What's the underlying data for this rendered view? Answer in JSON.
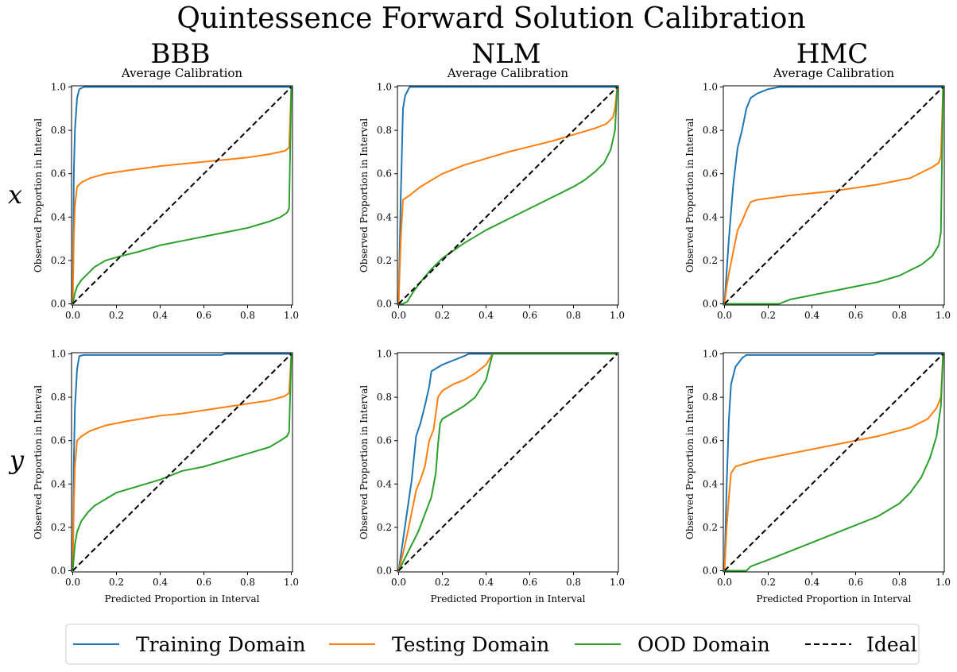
{
  "figure": {
    "title": "Quintessence Forward Solution Calibration",
    "columns": [
      "BBB",
      "NLM",
      "HMC"
    ],
    "rows": [
      "x",
      "y"
    ],
    "subtitle": "Average Calibration",
    "xlabel": "Predicted Proportion in Interval",
    "ylabel": "Observed Proportion in Interval",
    "ticks": [
      "0.0",
      "0.2",
      "0.4",
      "0.6",
      "0.8",
      "1.0"
    ]
  },
  "colors": {
    "Training Domain": "#1f77b4",
    "Testing Domain": "#ff7f0e",
    "OOD Domain": "#2ca02c",
    "Ideal": "#000000"
  },
  "legend": {
    "position": "bottom",
    "items": [
      {
        "label": "Training Domain",
        "style": "solid"
      },
      {
        "label": "Testing Domain",
        "style": "solid"
      },
      {
        "label": "OOD Domain",
        "style": "solid"
      },
      {
        "label": "Ideal",
        "style": "dashed"
      }
    ]
  },
  "chart_data": [
    {
      "type": "line",
      "method": "BBB",
      "output": "x",
      "xlim": [
        0,
        1
      ],
      "ylim": [
        0,
        1
      ],
      "grid": false,
      "series": [
        {
          "name": "Training Domain",
          "x": [
            0,
            0.005,
            0.01,
            0.02,
            0.03,
            0.05,
            1.0
          ],
          "y": [
            0,
            0.6,
            0.8,
            0.95,
            0.99,
            1.0,
            1.0
          ]
        },
        {
          "name": "Testing Domain",
          "x": [
            0,
            0.005,
            0.01,
            0.02,
            0.04,
            0.08,
            0.15,
            0.25,
            0.4,
            0.5,
            0.6,
            0.7,
            0.8,
            0.9,
            0.97,
            0.99,
            1.0
          ],
          "y": [
            0,
            0.3,
            0.45,
            0.54,
            0.56,
            0.58,
            0.6,
            0.615,
            0.635,
            0.645,
            0.655,
            0.665,
            0.675,
            0.69,
            0.705,
            0.72,
            1.0
          ]
        },
        {
          "name": "OOD Domain",
          "x": [
            0,
            0.01,
            0.02,
            0.04,
            0.07,
            0.1,
            0.15,
            0.22,
            0.3,
            0.4,
            0.5,
            0.6,
            0.7,
            0.8,
            0.9,
            0.95,
            0.98,
            0.99,
            1.0
          ],
          "y": [
            0,
            0.05,
            0.08,
            0.11,
            0.14,
            0.17,
            0.2,
            0.22,
            0.24,
            0.27,
            0.29,
            0.31,
            0.33,
            0.35,
            0.38,
            0.4,
            0.42,
            0.44,
            1.0
          ]
        },
        {
          "name": "Ideal",
          "x": [
            0,
            1
          ],
          "y": [
            0,
            1
          ]
        }
      ]
    },
    {
      "type": "line",
      "method": "NLM",
      "output": "x",
      "xlim": [
        0,
        1
      ],
      "ylim": [
        0,
        1
      ],
      "grid": false,
      "series": [
        {
          "name": "Training Domain",
          "x": [
            0,
            0.01,
            0.02,
            0.03,
            0.05,
            1.0
          ],
          "y": [
            0,
            0.5,
            0.9,
            0.96,
            1.0,
            1.0
          ]
        },
        {
          "name": "Testing Domain",
          "x": [
            0,
            0.01,
            0.02,
            0.05,
            0.1,
            0.2,
            0.3,
            0.4,
            0.5,
            0.6,
            0.7,
            0.8,
            0.9,
            0.95,
            0.98,
            0.99,
            1.0
          ],
          "y": [
            0,
            0.3,
            0.48,
            0.5,
            0.54,
            0.6,
            0.64,
            0.67,
            0.7,
            0.725,
            0.75,
            0.78,
            0.81,
            0.83,
            0.86,
            0.9,
            1.0
          ]
        },
        {
          "name": "OOD Domain",
          "x": [
            0,
            0.02,
            0.04,
            0.07,
            0.1,
            0.15,
            0.2,
            0.3,
            0.4,
            0.5,
            0.6,
            0.7,
            0.8,
            0.85,
            0.9,
            0.94,
            0.97,
            0.99,
            1.0
          ],
          "y": [
            0,
            0,
            0.01,
            0.06,
            0.1,
            0.16,
            0.21,
            0.28,
            0.34,
            0.39,
            0.44,
            0.49,
            0.54,
            0.57,
            0.61,
            0.65,
            0.71,
            0.8,
            1.0
          ]
        },
        {
          "name": "Ideal",
          "x": [
            0,
            1
          ],
          "y": [
            0,
            1
          ]
        }
      ]
    },
    {
      "type": "line",
      "method": "HMC",
      "output": "x",
      "xlim": [
        0,
        1
      ],
      "ylim": [
        0,
        1
      ],
      "grid": false,
      "series": [
        {
          "name": "Training Domain",
          "x": [
            0,
            0.01,
            0.02,
            0.04,
            0.06,
            0.08,
            0.1,
            0.12,
            0.15,
            0.2,
            0.25,
            0.3,
            1.0
          ],
          "y": [
            0,
            0.15,
            0.3,
            0.55,
            0.72,
            0.8,
            0.9,
            0.95,
            0.97,
            0.99,
            1.0,
            1.0,
            1.0
          ]
        },
        {
          "name": "Testing Domain",
          "x": [
            0,
            0.01,
            0.02,
            0.04,
            0.06,
            0.08,
            0.1,
            0.12,
            0.15,
            0.3,
            0.5,
            0.7,
            0.85,
            0.95,
            0.98,
            0.99,
            1.0
          ],
          "y": [
            0,
            0.08,
            0.14,
            0.24,
            0.34,
            0.38,
            0.43,
            0.47,
            0.48,
            0.5,
            0.52,
            0.55,
            0.58,
            0.63,
            0.65,
            0.68,
            1.0
          ]
        },
        {
          "name": "OOD Domain",
          "x": [
            0,
            0.25,
            0.3,
            0.4,
            0.5,
            0.6,
            0.7,
            0.8,
            0.9,
            0.95,
            0.98,
            0.99,
            1.0
          ],
          "y": [
            0,
            0,
            0.02,
            0.04,
            0.06,
            0.08,
            0.1,
            0.13,
            0.18,
            0.22,
            0.27,
            0.33,
            1.0
          ]
        },
        {
          "name": "Ideal",
          "x": [
            0,
            1
          ],
          "y": [
            0,
            1
          ]
        }
      ]
    },
    {
      "type": "line",
      "method": "BBB",
      "output": "y",
      "xlim": [
        0,
        1
      ],
      "ylim": [
        0,
        1
      ],
      "grid": false,
      "series": [
        {
          "name": "Training Domain",
          "x": [
            0,
            0.005,
            0.01,
            0.02,
            0.03,
            0.05,
            0.68,
            0.7,
            1.0
          ],
          "y": [
            0,
            0.5,
            0.75,
            0.93,
            0.99,
            0.995,
            0.995,
            1.0,
            1.0
          ]
        },
        {
          "name": "Testing Domain",
          "x": [
            0,
            0.005,
            0.01,
            0.02,
            0.04,
            0.08,
            0.15,
            0.25,
            0.4,
            0.5,
            0.6,
            0.7,
            0.8,
            0.9,
            0.97,
            0.99,
            1.0
          ],
          "y": [
            0,
            0.3,
            0.48,
            0.6,
            0.62,
            0.645,
            0.67,
            0.69,
            0.715,
            0.725,
            0.74,
            0.755,
            0.77,
            0.785,
            0.805,
            0.82,
            1.0
          ]
        },
        {
          "name": "OOD Domain",
          "x": [
            0,
            0.01,
            0.02,
            0.04,
            0.07,
            0.1,
            0.15,
            0.2,
            0.3,
            0.4,
            0.5,
            0.6,
            0.7,
            0.8,
            0.9,
            0.95,
            0.98,
            0.99,
            1.0
          ],
          "y": [
            0,
            0.12,
            0.18,
            0.23,
            0.27,
            0.3,
            0.33,
            0.36,
            0.39,
            0.42,
            0.46,
            0.48,
            0.51,
            0.54,
            0.57,
            0.6,
            0.62,
            0.64,
            1.0
          ]
        },
        {
          "name": "Ideal",
          "x": [
            0,
            1
          ],
          "y": [
            0,
            1
          ]
        }
      ]
    },
    {
      "type": "line",
      "method": "NLM",
      "output": "y",
      "xlim": [
        0,
        1
      ],
      "ylim": [
        0,
        1
      ],
      "grid": false,
      "series": [
        {
          "name": "Training Domain",
          "x": [
            0,
            0.02,
            0.04,
            0.06,
            0.08,
            0.1,
            0.12,
            0.14,
            0.15,
            0.2,
            0.25,
            0.3,
            0.32,
            1.0
          ],
          "y": [
            0,
            0.14,
            0.28,
            0.42,
            0.62,
            0.68,
            0.76,
            0.85,
            0.92,
            0.95,
            0.97,
            0.99,
            1.0,
            1.0
          ]
        },
        {
          "name": "Testing Domain",
          "x": [
            0,
            0.02,
            0.04,
            0.06,
            0.08,
            0.1,
            0.12,
            0.14,
            0.16,
            0.18,
            0.2,
            0.25,
            0.3,
            0.35,
            0.4,
            0.43,
            1.0
          ],
          "y": [
            0,
            0.08,
            0.17,
            0.27,
            0.37,
            0.42,
            0.48,
            0.6,
            0.65,
            0.8,
            0.83,
            0.86,
            0.88,
            0.91,
            0.95,
            1.0,
            1.0
          ]
        },
        {
          "name": "OOD Domain",
          "x": [
            0,
            0.03,
            0.06,
            0.09,
            0.12,
            0.15,
            0.17,
            0.18,
            0.19,
            0.2,
            0.25,
            0.3,
            0.35,
            0.4,
            0.43,
            1.0
          ],
          "y": [
            0,
            0.06,
            0.12,
            0.18,
            0.26,
            0.34,
            0.45,
            0.58,
            0.68,
            0.7,
            0.73,
            0.76,
            0.8,
            0.88,
            1.0,
            1.0
          ]
        },
        {
          "name": "Ideal",
          "x": [
            0,
            1
          ],
          "y": [
            0,
            1
          ]
        }
      ]
    },
    {
      "type": "line",
      "method": "HMC",
      "output": "y",
      "xlim": [
        0,
        1
      ],
      "ylim": [
        0,
        1
      ],
      "grid": false,
      "series": [
        {
          "name": "Training Domain",
          "x": [
            0,
            0.01,
            0.02,
            0.03,
            0.05,
            0.08,
            0.1,
            0.68,
            0.7,
            1.0
          ],
          "y": [
            0,
            0.4,
            0.7,
            0.86,
            0.94,
            0.98,
            0.995,
            0.995,
            1.0,
            1.0
          ]
        },
        {
          "name": "Testing Domain",
          "x": [
            0,
            0.01,
            0.02,
            0.03,
            0.05,
            0.08,
            0.15,
            0.3,
            0.5,
            0.7,
            0.85,
            0.93,
            0.97,
            0.99,
            1.0
          ],
          "y": [
            0,
            0.2,
            0.34,
            0.45,
            0.48,
            0.49,
            0.51,
            0.54,
            0.58,
            0.62,
            0.66,
            0.7,
            0.75,
            0.8,
            1.0
          ]
        },
        {
          "name": "OOD Domain",
          "x": [
            0,
            0.1,
            0.12,
            0.2,
            0.3,
            0.4,
            0.5,
            0.6,
            0.7,
            0.8,
            0.85,
            0.9,
            0.94,
            0.97,
            0.99,
            1.0
          ],
          "y": [
            0,
            0,
            0.02,
            0.05,
            0.09,
            0.13,
            0.17,
            0.21,
            0.25,
            0.31,
            0.36,
            0.43,
            0.52,
            0.62,
            0.76,
            1.0
          ]
        },
        {
          "name": "Ideal",
          "x": [
            0,
            1
          ],
          "y": [
            0,
            1
          ]
        }
      ]
    }
  ]
}
